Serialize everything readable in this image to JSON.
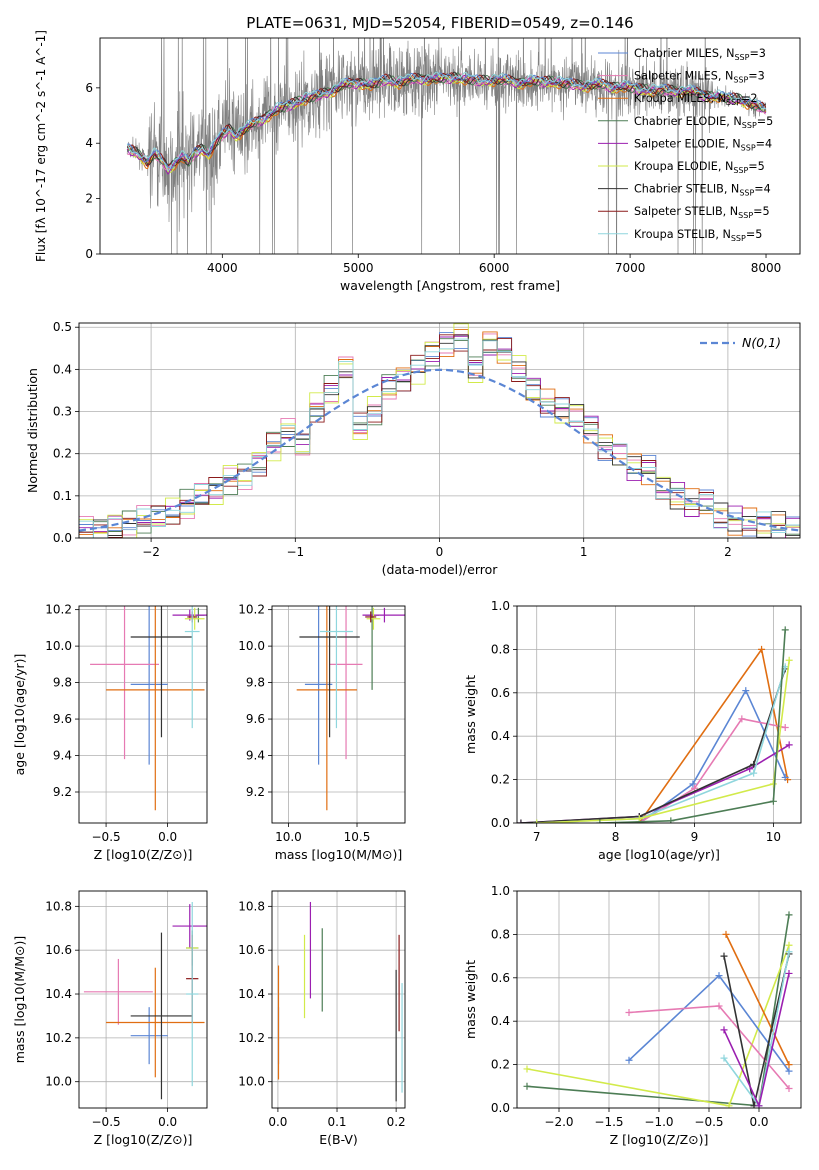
{
  "title": "PLATE=0631, MJD=52054, FIBERID=0549, z=0.146",
  "colors": {
    "cm": "#5b86d4",
    "sm": "#e67ab3",
    "km": "#e06e12",
    "ce": "#4d7d55",
    "se": "#9b1fb0",
    "ke": "#d2ea4a",
    "cs": "#333333",
    "ss": "#8b1a1a",
    "ks": "#8fd6dd",
    "obs": "#808080",
    "normal": "#5b86d4"
  },
  "chart_data": [
    {
      "id": "spectrum",
      "type": "line",
      "xlabel": "wavelength [Angstrom, rest frame]",
      "ylabel": "Flux [fλ 10^-17 erg cm^-2 s^-1 A^-1]",
      "xlim": [
        3100,
        8250
      ],
      "ylim": [
        0,
        7.8
      ],
      "xticks": [
        4000,
        5000,
        6000,
        7000,
        8000
      ],
      "yticks": [
        0,
        2,
        4,
        6
      ],
      "grid": false,
      "legend_position": "upper-right",
      "legend": [
        {
          "key": "cm",
          "label": "Chabrier MILES, N",
          "sub": "SSP",
          "tail": "=3"
        },
        {
          "key": "sm",
          "label": "Salpeter MILES, N",
          "sub": "SSP",
          "tail": "=3"
        },
        {
          "key": "km",
          "label": "Kroupa MILES, N",
          "sub": "SSP",
          "tail": "=2"
        },
        {
          "key": "ce",
          "label": "Chabrier ELODIE, N",
          "sub": "SSP",
          "tail": "=5"
        },
        {
          "key": "se",
          "label": "Salpeter ELODIE, N",
          "sub": "SSP",
          "tail": "=4"
        },
        {
          "key": "ke",
          "label": "Kroupa ELODIE, N",
          "sub": "SSP",
          "tail": "=5"
        },
        {
          "key": "cs",
          "label": "Chabrier STELIB, N",
          "sub": "SSP",
          "tail": "=4"
        },
        {
          "key": "ss",
          "label": "Salpeter STELIB, N",
          "sub": "SSP",
          "tail": "=5"
        },
        {
          "key": "ks",
          "label": "Kroupa STELIB, N",
          "sub": "SSP",
          "tail": "=5"
        }
      ],
      "model_curve": {
        "x": [
          3300,
          3350,
          3400,
          3450,
          3500,
          3550,
          3600,
          3650,
          3700,
          3750,
          3800,
          3850,
          3900,
          3950,
          4000,
          4050,
          4100,
          4200,
          4300,
          4400,
          4500,
          4600,
          4700,
          4800,
          4900,
          5000,
          5100,
          5200,
          5300,
          5400,
          5500,
          5600,
          5700,
          5800,
          5900,
          6000,
          6200,
          6400,
          6600,
          6800,
          7000,
          7200,
          7400,
          7600,
          7800,
          8000
        ],
        "y": [
          3.8,
          3.7,
          3.55,
          3.3,
          3.6,
          3.4,
          3.1,
          3.3,
          3.5,
          3.3,
          3.7,
          3.8,
          3.6,
          4.0,
          4.3,
          4.5,
          4.3,
          4.6,
          4.9,
          5.2,
          5.4,
          5.6,
          5.7,
          5.9,
          6.1,
          6.2,
          6.1,
          6.3,
          6.2,
          6.3,
          6.35,
          6.3,
          6.4,
          6.3,
          6.25,
          6.3,
          6.2,
          6.25,
          6.1,
          6.1,
          6.0,
          5.9,
          5.9,
          5.7,
          5.6,
          5.2
        ]
      }
    },
    {
      "id": "residuals",
      "type": "bar",
      "xlabel": "(data-model)/error",
      "ylabel": "Normed distribution",
      "xlim": [
        -2.5,
        2.5
      ],
      "ylim": [
        0,
        0.51
      ],
      "xticks": [
        -2,
        -1,
        0,
        1,
        2
      ],
      "yticks": [
        0.0,
        0.1,
        0.2,
        0.3,
        0.4,
        0.5
      ],
      "grid": true,
      "legend_position": "upper-right",
      "legend": [
        {
          "key": "normal",
          "label": "N(0,1)"
        }
      ],
      "bin_width": 0.1,
      "bin_start": -2.5,
      "hist_values": [
        0.02,
        0.02,
        0.03,
        0.03,
        0.04,
        0.05,
        0.06,
        0.08,
        0.1,
        0.11,
        0.14,
        0.15,
        0.18,
        0.22,
        0.25,
        0.22,
        0.31,
        0.35,
        0.4,
        0.26,
        0.3,
        0.36,
        0.38,
        0.4,
        0.44,
        0.46,
        0.48,
        0.4,
        0.46,
        0.44,
        0.4,
        0.35,
        0.32,
        0.3,
        0.29,
        0.26,
        0.22,
        0.2,
        0.17,
        0.16,
        0.12,
        0.1,
        0.08,
        0.08,
        0.05,
        0.04,
        0.04,
        0.03,
        0.03,
        0.02
      ]
    },
    {
      "id": "age-vs-Z",
      "type": "scatter",
      "xlabel": "Z [log10(Z/Z⊙)]",
      "ylabel": "age  [log10(age/yr)]",
      "xlim": [
        -0.72,
        0.32
      ],
      "ylim": [
        9.03,
        10.22
      ],
      "xticks": [
        -0.5,
        0.0
      ],
      "yticks": [
        9.2,
        9.4,
        9.6,
        9.8,
        10.0,
        10.2
      ],
      "grid": true,
      "points": [
        {
          "key": "cm",
          "x": -0.15,
          "y": 9.79,
          "xerr": 0.15,
          "yerr": 0.44
        },
        {
          "key": "sm",
          "x": -0.35,
          "y": 9.9,
          "xerr": 0.28,
          "yerr": 0.52
        },
        {
          "key": "km",
          "x": -0.1,
          "y": 9.76,
          "xerr": 0.4,
          "yerr": 0.66
        },
        {
          "key": "ce",
          "x": 0.25,
          "y": 10.17,
          "xerr": 0.05,
          "yerr": 0.04
        },
        {
          "key": "se",
          "x": 0.18,
          "y": 10.17,
          "xerr": 0.14,
          "yerr": 0.03
        },
        {
          "key": "ke",
          "x": 0.22,
          "y": 10.15,
          "xerr": 0.08,
          "yerr": 0.06
        },
        {
          "key": "cs",
          "x": -0.05,
          "y": 10.05,
          "xerr": 0.25,
          "yerr": 0.55
        },
        {
          "key": "ss",
          "x": 0.2,
          "y": 10.16,
          "xerr": 0.04,
          "yerr": 0.03
        },
        {
          "key": "ks",
          "x": 0.2,
          "y": 10.08,
          "xerr": 0.06,
          "yerr": 0.53
        }
      ]
    },
    {
      "id": "age-vs-mass",
      "type": "scatter",
      "xlabel": "mass [log10(M/M⊙)]",
      "ylabel": "",
      "xlim": [
        9.88,
        10.85
      ],
      "ylim": [
        9.03,
        10.22
      ],
      "xticks": [
        10.0,
        10.5
      ],
      "yticks": [
        9.2,
        9.4,
        9.6,
        9.8,
        10.0,
        10.2
      ],
      "grid": true,
      "points": [
        {
          "key": "cm",
          "x": 10.22,
          "y": 9.79,
          "xerr": 0.1,
          "yerr": 0.44
        },
        {
          "key": "sm",
          "x": 10.42,
          "y": 9.9,
          "xerr": 0.12,
          "yerr": 0.52
        },
        {
          "key": "km",
          "x": 10.28,
          "y": 9.76,
          "xerr": 0.22,
          "yerr": 0.66
        },
        {
          "key": "ce",
          "x": 10.61,
          "y": 10.17,
          "xerr": 0.05,
          "yerr": 0.41
        },
        {
          "key": "se",
          "x": 10.7,
          "y": 10.17,
          "xerr": 0.16,
          "yerr": 0.04
        },
        {
          "key": "ke",
          "x": 10.62,
          "y": 10.15,
          "xerr": 0.05,
          "yerr": 0.06
        },
        {
          "key": "cs",
          "x": 10.3,
          "y": 10.05,
          "xerr": 0.22,
          "yerr": 0.55
        },
        {
          "key": "ss",
          "x": 10.6,
          "y": 10.16,
          "xerr": 0.04,
          "yerr": 0.03
        },
        {
          "key": "ks",
          "x": 10.35,
          "y": 10.08,
          "xerr": 0.12,
          "yerr": 0.53
        }
      ]
    },
    {
      "id": "weight-vs-age",
      "type": "line",
      "xlabel": "age  [log10(age/yr)]",
      "ylabel": "mass weight",
      "xlim": [
        6.75,
        10.35
      ],
      "ylim": [
        0.0,
        1.0
      ],
      "xticks": [
        7,
        8,
        9,
        10
      ],
      "yticks": [
        0.0,
        0.2,
        0.4,
        0.6,
        0.8,
        1.0
      ],
      "grid": true,
      "series": [
        {
          "key": "km",
          "x": [
            8.3,
            9.85,
            10.18
          ],
          "y": [
            0.0,
            0.8,
            0.2
          ]
        },
        {
          "key": "cm",
          "x": [
            8.3,
            8.98,
            9.65,
            10.15
          ],
          "y": [
            0.0,
            0.18,
            0.61,
            0.21
          ]
        },
        {
          "key": "sm",
          "x": [
            8.3,
            9.0,
            9.6,
            10.15
          ],
          "y": [
            0.0,
            0.16,
            0.48,
            0.44
          ]
        },
        {
          "key": "se",
          "x": [
            6.8,
            8.3,
            9.7,
            10.2
          ],
          "y": [
            0.0,
            0.03,
            0.25,
            0.36
          ]
        },
        {
          "key": "cs",
          "x": [
            6.8,
            8.3,
            9.75,
            10.15
          ],
          "y": [
            0.0,
            0.03,
            0.27,
            0.71
          ]
        },
        {
          "key": "ks",
          "x": [
            7.0,
            8.3,
            9.75,
            10.15
          ],
          "y": [
            0.0,
            0.02,
            0.23,
            0.72
          ]
        },
        {
          "key": "ke",
          "x": [
            7.0,
            8.3,
            10.0,
            10.2
          ],
          "y": [
            0.0,
            0.02,
            0.18,
            0.75
          ]
        },
        {
          "key": "ce",
          "x": [
            7.8,
            8.7,
            10.0,
            10.15
          ],
          "y": [
            0.0,
            0.01,
            0.1,
            0.89
          ]
        }
      ]
    },
    {
      "id": "mass-vs-Z",
      "type": "scatter",
      "xlabel": "Z [log10(Z/Z⊙)]",
      "ylabel": "mass [log10(M/M⊙)]",
      "xlim": [
        -0.72,
        0.32
      ],
      "ylim": [
        9.88,
        10.87
      ],
      "xticks": [
        -0.5,
        0.0
      ],
      "yticks": [
        10.0,
        10.2,
        10.4,
        10.6,
        10.8
      ],
      "grid": true,
      "points": [
        {
          "key": "cm",
          "x": -0.15,
          "y": 10.21,
          "xerr": 0.15,
          "yerr": 0.13
        },
        {
          "key": "sm",
          "x": -0.4,
          "y": 10.41,
          "xerr": 0.28,
          "yerr": 0.15
        },
        {
          "key": "km",
          "x": -0.1,
          "y": 10.27,
          "xerr": 0.4,
          "yerr": 0.25
        },
        {
          "key": "ce",
          "x": 0.2,
          "y": 10.61,
          "xerr": 0.05,
          "yerr": 0.08
        },
        {
          "key": "se",
          "x": 0.18,
          "y": 10.71,
          "xerr": 0.14,
          "yerr": 0.1
        },
        {
          "key": "ke",
          "x": 0.2,
          "y": 10.61,
          "xerr": 0.05,
          "yerr": 0.05
        },
        {
          "key": "cs",
          "x": -0.05,
          "y": 10.3,
          "xerr": 0.25,
          "yerr": 0.38
        },
        {
          "key": "ss",
          "x": 0.2,
          "y": 10.47,
          "xerr": 0.05,
          "yerr": 0.2
        },
        {
          "key": "ks",
          "x": 0.2,
          "y": 10.4,
          "xerr": 0.05,
          "yerr": 0.42
        }
      ]
    },
    {
      "id": "mass-vs-ebv",
      "type": "scatter",
      "xlabel": "E(B-V)",
      "ylabel": "",
      "xlim": [
        -0.01,
        0.215
      ],
      "ylim": [
        9.88,
        10.87
      ],
      "xticks": [
        0.0,
        0.1,
        0.2
      ],
      "yticks": [
        10.0,
        10.2,
        10.4,
        10.6,
        10.8
      ],
      "grid": true,
      "points": [
        {
          "key": "cm",
          "x": 0.001,
          "y": 10.21,
          "xerr": 0,
          "yerr": 0.13
        },
        {
          "key": "km",
          "x": 0.001,
          "y": 10.27,
          "xerr": 0,
          "yerr": 0.26
        },
        {
          "key": "ke",
          "x": 0.045,
          "y": 10.48,
          "xerr": 0,
          "yerr": 0.19
        },
        {
          "key": "se",
          "x": 0.055,
          "y": 10.6,
          "xerr": 0,
          "yerr": 0.22
        },
        {
          "key": "ce",
          "x": 0.075,
          "y": 10.51,
          "xerr": 0,
          "yerr": 0.19
        },
        {
          "key": "cs",
          "x": 0.2,
          "y": 10.21,
          "xerr": 0,
          "yerr": 0.3
        },
        {
          "key": "ss",
          "x": 0.205,
          "y": 10.45,
          "xerr": 0,
          "yerr": 0.22
        },
        {
          "key": "ks",
          "x": 0.21,
          "y": 10.2,
          "xerr": 0,
          "yerr": 0.25
        }
      ]
    },
    {
      "id": "weight-vs-Z",
      "type": "line",
      "xlabel": "Z [log10(Z/Z⊙)]",
      "ylabel": "mass weight",
      "xlim": [
        -2.42,
        0.42
      ],
      "ylim": [
        0.0,
        1.0
      ],
      "xticks": [
        -2.0,
        -1.5,
        -1.0,
        -0.5,
        0.0
      ],
      "yticks": [
        0.0,
        0.2,
        0.4,
        0.6,
        0.8,
        1.0
      ],
      "grid": true,
      "series": [
        {
          "key": "ce",
          "x": [
            -2.32,
            0.0,
            0.3
          ],
          "y": [
            0.1,
            0.01,
            0.89
          ]
        },
        {
          "key": "ke",
          "x": [
            -2.32,
            -0.3,
            0.3
          ],
          "y": [
            0.18,
            0.01,
            0.75
          ]
        },
        {
          "key": "cm",
          "x": [
            -1.3,
            -0.4,
            0.3
          ],
          "y": [
            0.22,
            0.61,
            0.17
          ]
        },
        {
          "key": "sm",
          "x": [
            -1.3,
            -0.4,
            0.3
          ],
          "y": [
            0.44,
            0.47,
            0.09
          ]
        },
        {
          "key": "km",
          "x": [
            -0.33,
            0.3
          ],
          "y": [
            0.8,
            0.2
          ]
        },
        {
          "key": "cs",
          "x": [
            -0.35,
            -0.05,
            0.3
          ],
          "y": [
            0.7,
            0.01,
            0.71
          ]
        },
        {
          "key": "ks",
          "x": [
            -0.35,
            0.0,
            0.3
          ],
          "y": [
            0.23,
            0.01,
            0.72
          ]
        },
        {
          "key": "se",
          "x": [
            -0.35,
            0.0,
            0.3
          ],
          "y": [
            0.36,
            0.01,
            0.62
          ]
        }
      ]
    }
  ]
}
